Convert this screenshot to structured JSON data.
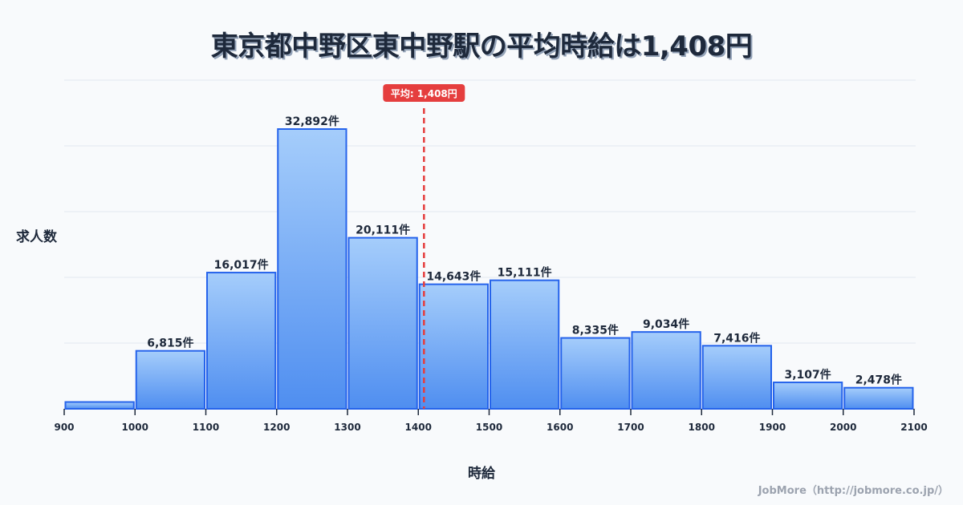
{
  "title": "東京都中野区東中野駅の平均時給は1,408円",
  "ylabel": "求人数",
  "xlabel": "時給",
  "credit": "JobMore（http://jobmore.co.jp/）",
  "mean_label": "平均: 1,408円",
  "colors": {
    "bar_top": "#a5cdfb",
    "bar_bottom": "#4f8ef0",
    "bar_stroke": "#2563eb",
    "mean_line": "#e53e3e",
    "grid": "#e2e8f0",
    "text": "#1e293b"
  },
  "chart_data": {
    "type": "bar",
    "title": "東京都中野区東中野駅の平均時給は1,408円",
    "xlabel": "時給",
    "ylabel": "求人数",
    "bin_edges": [
      900,
      1000,
      1100,
      1200,
      1300,
      1400,
      1500,
      1600,
      1700,
      1800,
      1900,
      2000,
      2100
    ],
    "categories": [
      "900-1000",
      "1000-1100",
      "1100-1200",
      "1200-1300",
      "1300-1400",
      "1400-1500",
      "1500-1600",
      "1600-1700",
      "1700-1800",
      "1800-1900",
      "1900-2000",
      "2000-2100"
    ],
    "values": [
      800,
      6815,
      16017,
      32892,
      20111,
      14643,
      15111,
      8335,
      9034,
      7416,
      3107,
      2478
    ],
    "value_labels": [
      "",
      "6,815件",
      "16,017件",
      "32,892件",
      "20,111件",
      "14,643件",
      "15,111件",
      "8,335件",
      "9,034件",
      "7,416件",
      "3,107件",
      "2,478件"
    ],
    "x_ticks": [
      "900",
      "1000",
      "1100",
      "1200",
      "1300",
      "1400",
      "1500",
      "1600",
      "1700",
      "1800",
      "1900",
      "2000",
      "2100"
    ],
    "mean": 1408,
    "mean_label": "平均: 1,408円",
    "xlim": [
      900,
      2100
    ],
    "ylim": [
      0,
      34500
    ],
    "grid": true,
    "legend": null
  }
}
